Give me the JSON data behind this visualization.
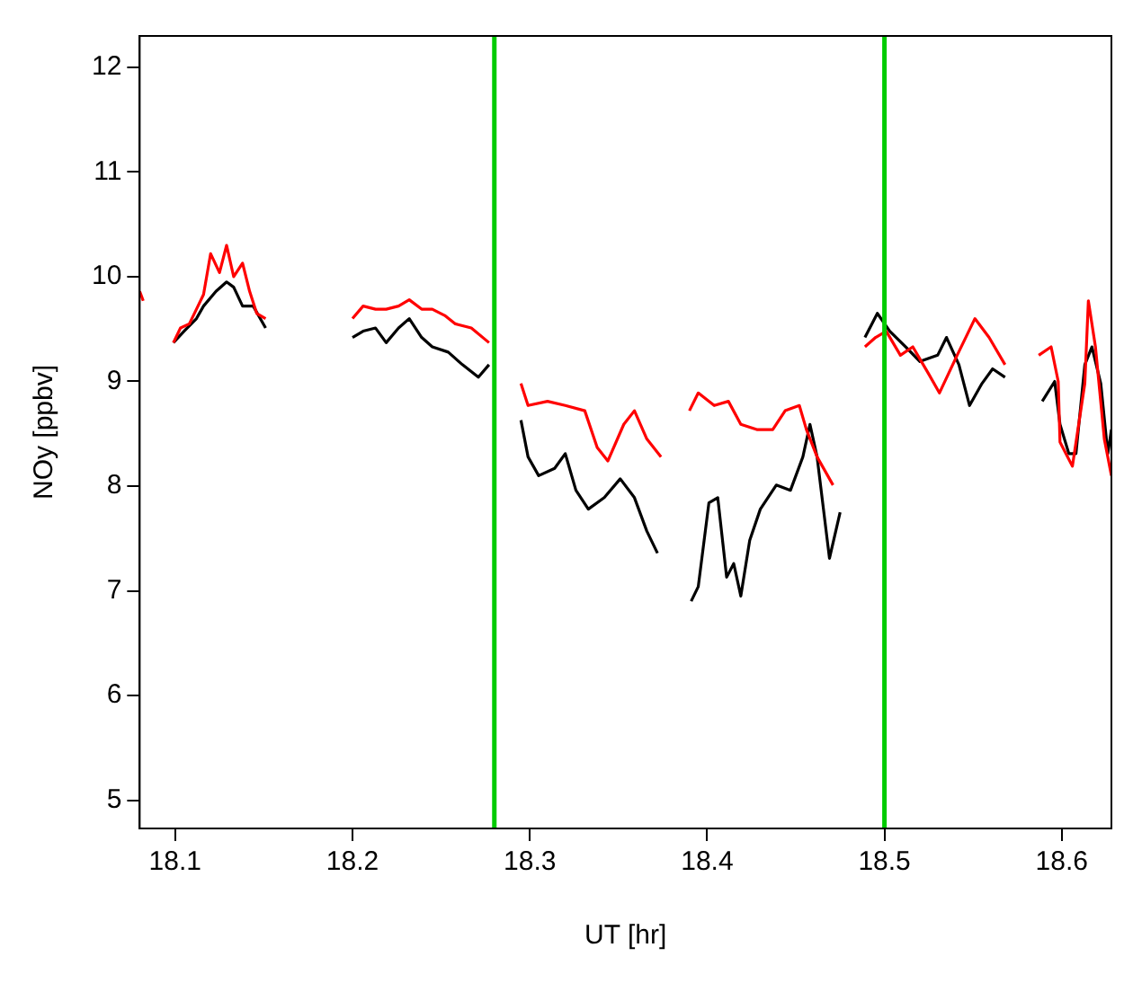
{
  "chart_data": {
    "type": "line",
    "xlabel": "UT [hr]",
    "ylabel": "NOy [ppbv]",
    "xlim": [
      18.08,
      18.628
    ],
    "ylim": [
      4.73,
      12.3
    ],
    "xticks": [
      18.1,
      18.2,
      18.3,
      18.4,
      18.5,
      18.6
    ],
    "yticks": [
      5,
      6,
      7,
      8,
      9,
      10,
      11,
      12
    ],
    "grid": false,
    "legend": false,
    "marker": "none",
    "line_style": "solid",
    "series": [
      {
        "color": "#ff0000",
        "x": [
          18.08,
          18.082,
          18.09,
          18.099,
          18.103,
          18.108,
          18.112,
          18.116,
          18.12,
          18.125,
          18.129,
          18.133,
          18.138,
          18.142,
          18.146,
          18.151,
          18.17,
          18.2,
          18.206,
          18.213,
          18.219,
          18.226,
          18.232,
          18.239,
          18.245,
          18.252,
          18.258,
          18.267,
          18.277,
          18.29,
          18.295,
          18.299,
          18.31,
          18.32,
          18.331,
          18.338,
          18.344,
          18.353,
          18.359,
          18.366,
          18.374,
          18.38,
          18.39,
          18.395,
          18.404,
          18.412,
          18.419,
          18.428,
          18.437,
          18.444,
          18.452,
          18.456,
          18.462,
          18.471,
          18.48,
          18.489,
          18.495,
          18.501,
          18.509,
          18.516,
          18.525,
          18.531,
          18.541,
          18.551,
          18.559,
          18.568,
          18.58,
          18.587,
          18.594,
          18.598,
          18.599,
          18.606,
          18.613,
          18.615,
          18.619,
          18.624,
          18.628
        ],
        "values": [
          9.86,
          9.77,
          null,
          9.37,
          9.51,
          9.55,
          9.69,
          9.83,
          10.22,
          10.04,
          10.3,
          10.0,
          10.13,
          9.86,
          9.65,
          9.6,
          null,
          9.6,
          9.72,
          9.69,
          9.69,
          9.72,
          9.78,
          9.69,
          9.69,
          9.63,
          9.55,
          9.51,
          9.37,
          null,
          8.98,
          8.77,
          8.81,
          8.77,
          8.72,
          8.37,
          8.24,
          8.59,
          8.72,
          8.45,
          8.28,
          null,
          8.72,
          8.89,
          8.77,
          8.81,
          8.59,
          8.54,
          8.54,
          8.72,
          8.77,
          8.54,
          8.28,
          8.01,
          null,
          9.33,
          9.42,
          9.48,
          9.25,
          9.33,
          9.07,
          8.89,
          9.25,
          9.6,
          9.42,
          9.16,
          null,
          9.25,
          9.33,
          9.0,
          8.42,
          8.19,
          8.98,
          9.77,
          9.33,
          8.45,
          8.1
        ]
      },
      {
        "color": "#000000",
        "x": [
          18.099,
          18.105,
          18.112,
          18.116,
          18.123,
          18.129,
          18.133,
          18.138,
          18.144,
          18.151,
          18.17,
          18.2,
          18.206,
          18.213,
          18.219,
          18.226,
          18.232,
          18.239,
          18.245,
          18.254,
          18.262,
          18.271,
          18.277,
          18.29,
          18.295,
          18.299,
          18.305,
          18.314,
          18.32,
          18.326,
          18.333,
          18.342,
          18.351,
          18.359,
          18.366,
          18.372,
          18.38,
          18.391,
          18.395,
          18.401,
          18.406,
          18.411,
          18.415,
          18.419,
          18.424,
          18.43,
          18.439,
          18.447,
          18.454,
          18.458,
          18.462,
          18.469,
          18.475,
          18.48,
          18.489,
          18.496,
          18.503,
          18.512,
          18.52,
          18.53,
          18.535,
          18.542,
          18.548,
          18.555,
          18.561,
          18.568,
          18.58,
          18.589,
          18.596,
          18.599,
          18.604,
          18.608,
          18.613,
          18.617,
          18.622,
          18.626,
          18.628
        ],
        "values": [
          9.37,
          9.48,
          9.6,
          9.72,
          9.86,
          9.95,
          9.9,
          9.72,
          9.72,
          9.51,
          null,
          9.42,
          9.48,
          9.51,
          9.37,
          9.51,
          9.6,
          9.42,
          9.33,
          9.28,
          9.16,
          9.04,
          9.16,
          null,
          8.63,
          8.28,
          8.1,
          8.17,
          8.31,
          7.96,
          7.78,
          7.89,
          8.07,
          7.89,
          7.57,
          7.36,
          null,
          6.9,
          7.04,
          7.84,
          7.89,
          7.13,
          7.26,
          6.95,
          7.48,
          7.78,
          8.01,
          7.96,
          8.28,
          8.59,
          8.28,
          7.31,
          7.75,
          null,
          9.42,
          9.65,
          9.48,
          9.33,
          9.19,
          9.25,
          9.42,
          9.16,
          8.77,
          8.98,
          9.12,
          9.04,
          null,
          8.81,
          9.0,
          8.59,
          8.31,
          8.31,
          9.16,
          9.33,
          8.98,
          8.31,
          8.54
        ]
      }
    ],
    "ref_lines": [
      {
        "axis": "x",
        "value": 18.28,
        "color": "#00cc00"
      },
      {
        "axis": "x",
        "value": 18.5,
        "color": "#00cc00"
      }
    ]
  }
}
